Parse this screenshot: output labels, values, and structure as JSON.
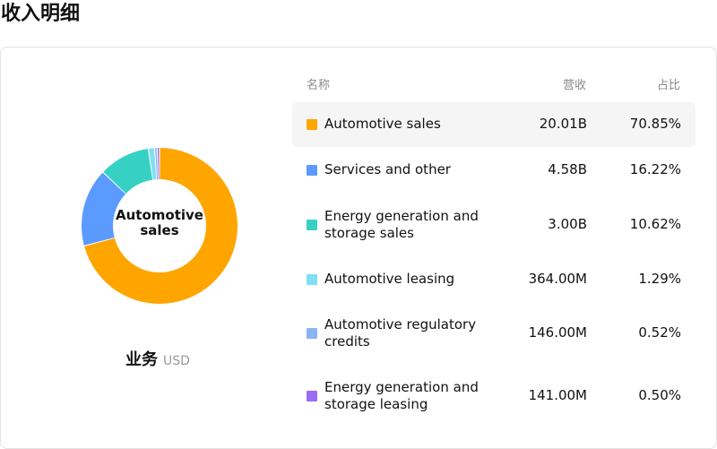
{
  "header": {
    "title": "收入明细"
  },
  "chart": {
    "center_label": "Automotive sales",
    "caption": "业务",
    "caption_unit": "USD"
  },
  "table": {
    "headers": {
      "name": "名称",
      "revenue": "营收",
      "share": "占比"
    },
    "rows": [
      {
        "name": "Automotive sales",
        "revenue": "20.01B",
        "share": "70.85%",
        "color": "#FFA500"
      },
      {
        "name": "Services and other",
        "revenue": "4.58B",
        "share": "16.22%",
        "color": "#5B9BFF"
      },
      {
        "name": "Energy generation and storage sales",
        "revenue": "3.00B",
        "share": "10.62%",
        "color": "#36D1C4"
      },
      {
        "name": "Automotive leasing",
        "revenue": "364.00M",
        "share": "1.29%",
        "color": "#7FDFF5"
      },
      {
        "name": "Automotive regulatory credits",
        "revenue": "146.00M",
        "share": "0.52%",
        "color": "#8BB4F5"
      },
      {
        "name": "Energy generation and storage leasing",
        "revenue": "141.00M",
        "share": "0.50%",
        "color": "#9B6BF5"
      }
    ]
  },
  "chart_data": {
    "type": "pie",
    "categories": [
      "Automotive sales",
      "Services and other",
      "Energy generation and storage sales",
      "Automotive leasing",
      "Automotive regulatory credits",
      "Energy generation and storage leasing"
    ],
    "values": [
      70.85,
      16.22,
      10.62,
      1.29,
      0.52,
      0.5
    ],
    "colors": [
      "#FFA500",
      "#5B9BFF",
      "#36D1C4",
      "#7FDFF5",
      "#8BB4F5",
      "#9B6BF5"
    ]
  }
}
